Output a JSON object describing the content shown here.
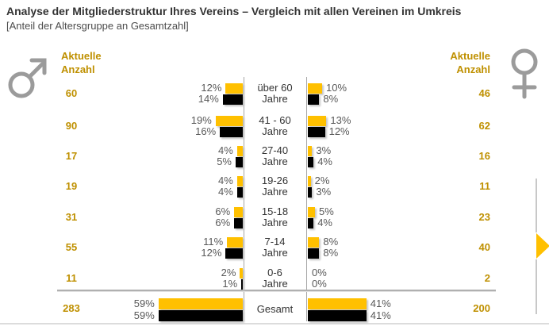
{
  "title": "Analyse der Mitgliederstruktur Ihres Vereins – Vergleich mit allen Vereinen im Umkreis",
  "subtitle": "[Anteil der Altersgruppe an Gesamtzahl]",
  "left_panel": {
    "symbol": "male-mars-symbol",
    "header": "Aktuelle\nAnzahl"
  },
  "right_panel": {
    "symbol": "female-venus-symbol",
    "header": "Aktuelle\nAnzahl"
  },
  "colors": {
    "bar_yellow": "#FFC000",
    "bar_black": "#000000",
    "gold_text": "#BF9000",
    "pct_text": "#595959",
    "symbol_gray": "#9b9b9b"
  },
  "chart_data": {
    "type": "bar",
    "orientation": "bidirectional-age-pyramid",
    "unit": "%",
    "series": [
      {
        "name": "yellow",
        "color": "#FFC000"
      },
      {
        "name": "black",
        "color": "#000000"
      }
    ],
    "legend": "none",
    "rows": [
      {
        "label_lines": [
          "über 60",
          "Jahre"
        ],
        "male_count": 60,
        "female_count": 46,
        "male_pct": [
          12,
          14
        ],
        "female_pct": [
          10,
          8
        ]
      },
      {
        "label_lines": [
          "41 - 60",
          "Jahre"
        ],
        "male_count": 90,
        "female_count": 62,
        "male_pct": [
          19,
          16
        ],
        "female_pct": [
          13,
          12
        ]
      },
      {
        "label_lines": [
          "27-40",
          "Jahre"
        ],
        "male_count": 17,
        "female_count": 16,
        "male_pct": [
          4,
          5
        ],
        "female_pct": [
          3,
          4
        ]
      },
      {
        "label_lines": [
          "19-26",
          "Jahre"
        ],
        "male_count": 19,
        "female_count": 11,
        "male_pct": [
          4,
          4
        ],
        "female_pct": [
          2,
          3
        ]
      },
      {
        "label_lines": [
          "15-18",
          "Jahre"
        ],
        "male_count": 31,
        "female_count": 23,
        "male_pct": [
          6,
          6
        ],
        "female_pct": [
          5,
          4
        ]
      },
      {
        "label_lines": [
          "7-14",
          "Jahre"
        ],
        "male_count": 55,
        "female_count": 40,
        "male_pct": [
          11,
          12
        ],
        "female_pct": [
          8,
          8
        ]
      },
      {
        "label_lines": [
          "0-6",
          "Jahre"
        ],
        "male_count": 11,
        "female_count": 2,
        "male_pct": [
          2,
          1
        ],
        "female_pct": [
          0,
          0
        ]
      }
    ],
    "total_row": {
      "label_lines": [
        "Gesamt"
      ],
      "male_count": 283,
      "female_count": 200,
      "male_pct": [
        59,
        59
      ],
      "female_pct": [
        41,
        41
      ]
    }
  },
  "nav": {
    "next_arrow": "next-page"
  }
}
